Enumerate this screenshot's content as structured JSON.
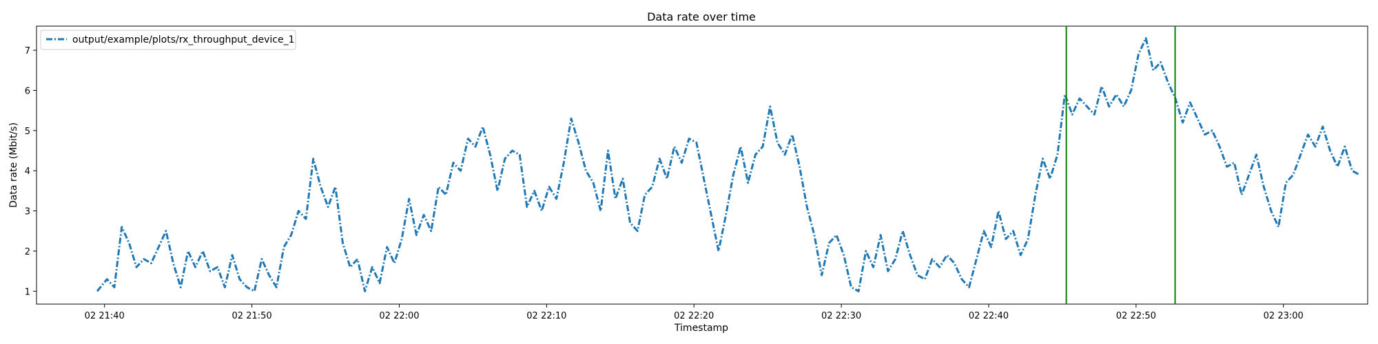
{
  "chart_data": {
    "type": "line",
    "title": "Data rate over time",
    "xlabel": "Timestamp",
    "ylabel": "Data rate (Mbit/s)",
    "x_ticks": [
      "02 21:40",
      "02 21:50",
      "02 22:00",
      "02 22:10",
      "02 22:20",
      "02 22:30",
      "02 22:40",
      "02 22:50",
      "02 23:00"
    ],
    "y_ticks": [
      "1",
      "2",
      "3",
      "4",
      "5",
      "6",
      "7"
    ],
    "xlim": [
      "21:35:23",
      "23:05:43"
    ],
    "ylim": [
      0.68,
      7.6
    ],
    "grid": false,
    "legend_position": "top-left",
    "series": [
      {
        "name": "output/example/plots/rx_throughput_device_1",
        "color": "#1f77b4",
        "linestyle": "dash-dot",
        "points": [
          [
            "21:39:30",
            1.0
          ],
          [
            "21:40:10",
            1.3
          ],
          [
            "21:40:40",
            1.1
          ],
          [
            "21:41:10",
            2.6
          ],
          [
            "21:41:40",
            2.2
          ],
          [
            "21:42:10",
            1.6
          ],
          [
            "21:42:40",
            1.8
          ],
          [
            "21:43:10",
            1.7
          ],
          [
            "21:43:40",
            2.1
          ],
          [
            "21:44:10",
            2.5
          ],
          [
            "21:44:40",
            1.7
          ],
          [
            "21:45:10",
            1.1
          ],
          [
            "21:45:40",
            2.0
          ],
          [
            "21:46:10",
            1.6
          ],
          [
            "21:46:40",
            2.0
          ],
          [
            "21:47:10",
            1.5
          ],
          [
            "21:47:40",
            1.6
          ],
          [
            "21:48:10",
            1.1
          ],
          [
            "21:48:40",
            1.9
          ],
          [
            "21:49:10",
            1.3
          ],
          [
            "21:49:40",
            1.1
          ],
          [
            "21:50:10",
            1.0
          ],
          [
            "21:50:40",
            1.8
          ],
          [
            "21:51:10",
            1.4
          ],
          [
            "21:51:40",
            1.1
          ],
          [
            "21:52:10",
            2.1
          ],
          [
            "21:52:40",
            2.4
          ],
          [
            "21:53:10",
            3.0
          ],
          [
            "21:53:40",
            2.8
          ],
          [
            "21:54:10",
            4.3
          ],
          [
            "21:54:40",
            3.6
          ],
          [
            "21:55:10",
            3.1
          ],
          [
            "21:55:40",
            3.6
          ],
          [
            "21:56:10",
            2.2
          ],
          [
            "21:56:40",
            1.6
          ],
          [
            "21:57:10",
            1.8
          ],
          [
            "21:57:40",
            1.0
          ],
          [
            "21:58:10",
            1.6
          ],
          [
            "21:58:40",
            1.2
          ],
          [
            "21:59:10",
            2.1
          ],
          [
            "21:59:40",
            1.7
          ],
          [
            "22:00:10",
            2.3
          ],
          [
            "22:00:40",
            3.3
          ],
          [
            "22:01:10",
            2.4
          ],
          [
            "22:01:40",
            2.9
          ],
          [
            "22:02:10",
            2.5
          ],
          [
            "22:02:40",
            3.6
          ],
          [
            "22:03:10",
            3.4
          ],
          [
            "22:03:40",
            4.2
          ],
          [
            "22:04:10",
            4.0
          ],
          [
            "22:04:40",
            4.8
          ],
          [
            "22:05:10",
            4.6
          ],
          [
            "22:05:40",
            5.1
          ],
          [
            "22:06:10",
            4.4
          ],
          [
            "22:06:40",
            3.5
          ],
          [
            "22:07:10",
            4.3
          ],
          [
            "22:07:40",
            4.5
          ],
          [
            "22:08:10",
            4.4
          ],
          [
            "22:08:40",
            3.1
          ],
          [
            "22:09:10",
            3.5
          ],
          [
            "22:09:40",
            3.0
          ],
          [
            "22:10:10",
            3.6
          ],
          [
            "22:10:40",
            3.3
          ],
          [
            "22:11:10",
            4.2
          ],
          [
            "22:11:40",
            5.3
          ],
          [
            "22:12:10",
            4.7
          ],
          [
            "22:12:40",
            4.0
          ],
          [
            "22:13:10",
            3.7
          ],
          [
            "22:13:40",
            3.0
          ],
          [
            "22:14:10",
            4.5
          ],
          [
            "22:14:40",
            3.3
          ],
          [
            "22:15:10",
            3.8
          ],
          [
            "22:15:40",
            2.7
          ],
          [
            "22:16:10",
            2.5
          ],
          [
            "22:16:40",
            3.4
          ],
          [
            "22:17:10",
            3.6
          ],
          [
            "22:17:40",
            4.3
          ],
          [
            "22:18:10",
            3.8
          ],
          [
            "22:18:40",
            4.6
          ],
          [
            "22:19:10",
            4.2
          ],
          [
            "22:19:40",
            4.8
          ],
          [
            "22:20:10",
            4.7
          ],
          [
            "22:20:40",
            3.8
          ],
          [
            "22:21:10",
            2.9
          ],
          [
            "22:21:40",
            2.0
          ],
          [
            "22:22:10",
            2.9
          ],
          [
            "22:22:40",
            3.9
          ],
          [
            "22:23:10",
            4.6
          ],
          [
            "22:23:40",
            3.7
          ],
          [
            "22:24:10",
            4.4
          ],
          [
            "22:24:40",
            4.6
          ],
          [
            "22:25:10",
            5.6
          ],
          [
            "22:25:40",
            4.7
          ],
          [
            "22:26:10",
            4.4
          ],
          [
            "22:26:40",
            4.9
          ],
          [
            "22:27:10",
            4.1
          ],
          [
            "22:27:40",
            3.1
          ],
          [
            "22:28:10",
            2.4
          ],
          [
            "22:28:40",
            1.4
          ],
          [
            "22:29:10",
            2.2
          ],
          [
            "22:29:40",
            2.4
          ],
          [
            "22:30:10",
            1.9
          ],
          [
            "22:30:40",
            1.1
          ],
          [
            "22:31:10",
            1.0
          ],
          [
            "22:31:40",
            2.0
          ],
          [
            "22:32:10",
            1.6
          ],
          [
            "22:32:40",
            2.4
          ],
          [
            "22:33:10",
            1.5
          ],
          [
            "22:33:40",
            1.8
          ],
          [
            "22:34:10",
            2.5
          ],
          [
            "22:34:40",
            1.9
          ],
          [
            "22:35:10",
            1.4
          ],
          [
            "22:35:40",
            1.3
          ],
          [
            "22:36:10",
            1.8
          ],
          [
            "22:36:40",
            1.6
          ],
          [
            "22:37:10",
            1.9
          ],
          [
            "22:37:40",
            1.7
          ],
          [
            "22:38:10",
            1.3
          ],
          [
            "22:38:40",
            1.1
          ],
          [
            "22:39:10",
            1.8
          ],
          [
            "22:39:40",
            2.5
          ],
          [
            "22:40:10",
            2.1
          ],
          [
            "22:40:40",
            3.0
          ],
          [
            "22:41:10",
            2.3
          ],
          [
            "22:41:40",
            2.5
          ],
          [
            "22:42:10",
            1.9
          ],
          [
            "22:42:40",
            2.3
          ],
          [
            "22:43:10",
            3.4
          ],
          [
            "22:43:40",
            4.3
          ],
          [
            "22:44:10",
            3.8
          ],
          [
            "22:44:40",
            4.4
          ],
          [
            "22:45:10",
            5.9
          ],
          [
            "22:45:40",
            5.4
          ],
          [
            "22:46:10",
            5.8
          ],
          [
            "22:46:40",
            5.6
          ],
          [
            "22:47:10",
            5.4
          ],
          [
            "22:47:40",
            6.1
          ],
          [
            "22:48:10",
            5.6
          ],
          [
            "22:48:40",
            5.9
          ],
          [
            "22:49:10",
            5.6
          ],
          [
            "22:49:40",
            6.0
          ],
          [
            "22:50:10",
            6.9
          ],
          [
            "22:50:40",
            7.3
          ],
          [
            "22:51:10",
            6.5
          ],
          [
            "22:51:40",
            6.7
          ],
          [
            "22:52:10",
            6.2
          ],
          [
            "22:52:40",
            5.8
          ],
          [
            "22:53:10",
            5.2
          ],
          [
            "22:53:40",
            5.7
          ],
          [
            "22:54:10",
            5.3
          ],
          [
            "22:54:40",
            4.9
          ],
          [
            "22:55:10",
            5.0
          ],
          [
            "22:55:40",
            4.6
          ],
          [
            "22:56:10",
            4.1
          ],
          [
            "22:56:40",
            4.2
          ],
          [
            "22:57:10",
            3.4
          ],
          [
            "22:57:40",
            3.9
          ],
          [
            "22:58:10",
            4.4
          ],
          [
            "22:58:40",
            3.6
          ],
          [
            "22:59:10",
            3.0
          ],
          [
            "22:59:40",
            2.6
          ],
          [
            "23:00:10",
            3.7
          ],
          [
            "23:00:40",
            3.9
          ],
          [
            "23:01:10",
            4.4
          ],
          [
            "23:01:40",
            4.9
          ],
          [
            "23:02:10",
            4.6
          ],
          [
            "23:02:40",
            5.1
          ],
          [
            "23:03:10",
            4.5
          ],
          [
            "23:03:40",
            4.1
          ],
          [
            "23:04:10",
            4.6
          ],
          [
            "23:04:40",
            4.0
          ],
          [
            "23:05:10",
            3.9
          ]
        ]
      }
    ],
    "vertical_lines": [
      {
        "x": "22:45:16",
        "color": "#008000"
      },
      {
        "x": "22:52:39",
        "color": "#008000"
      }
    ]
  }
}
